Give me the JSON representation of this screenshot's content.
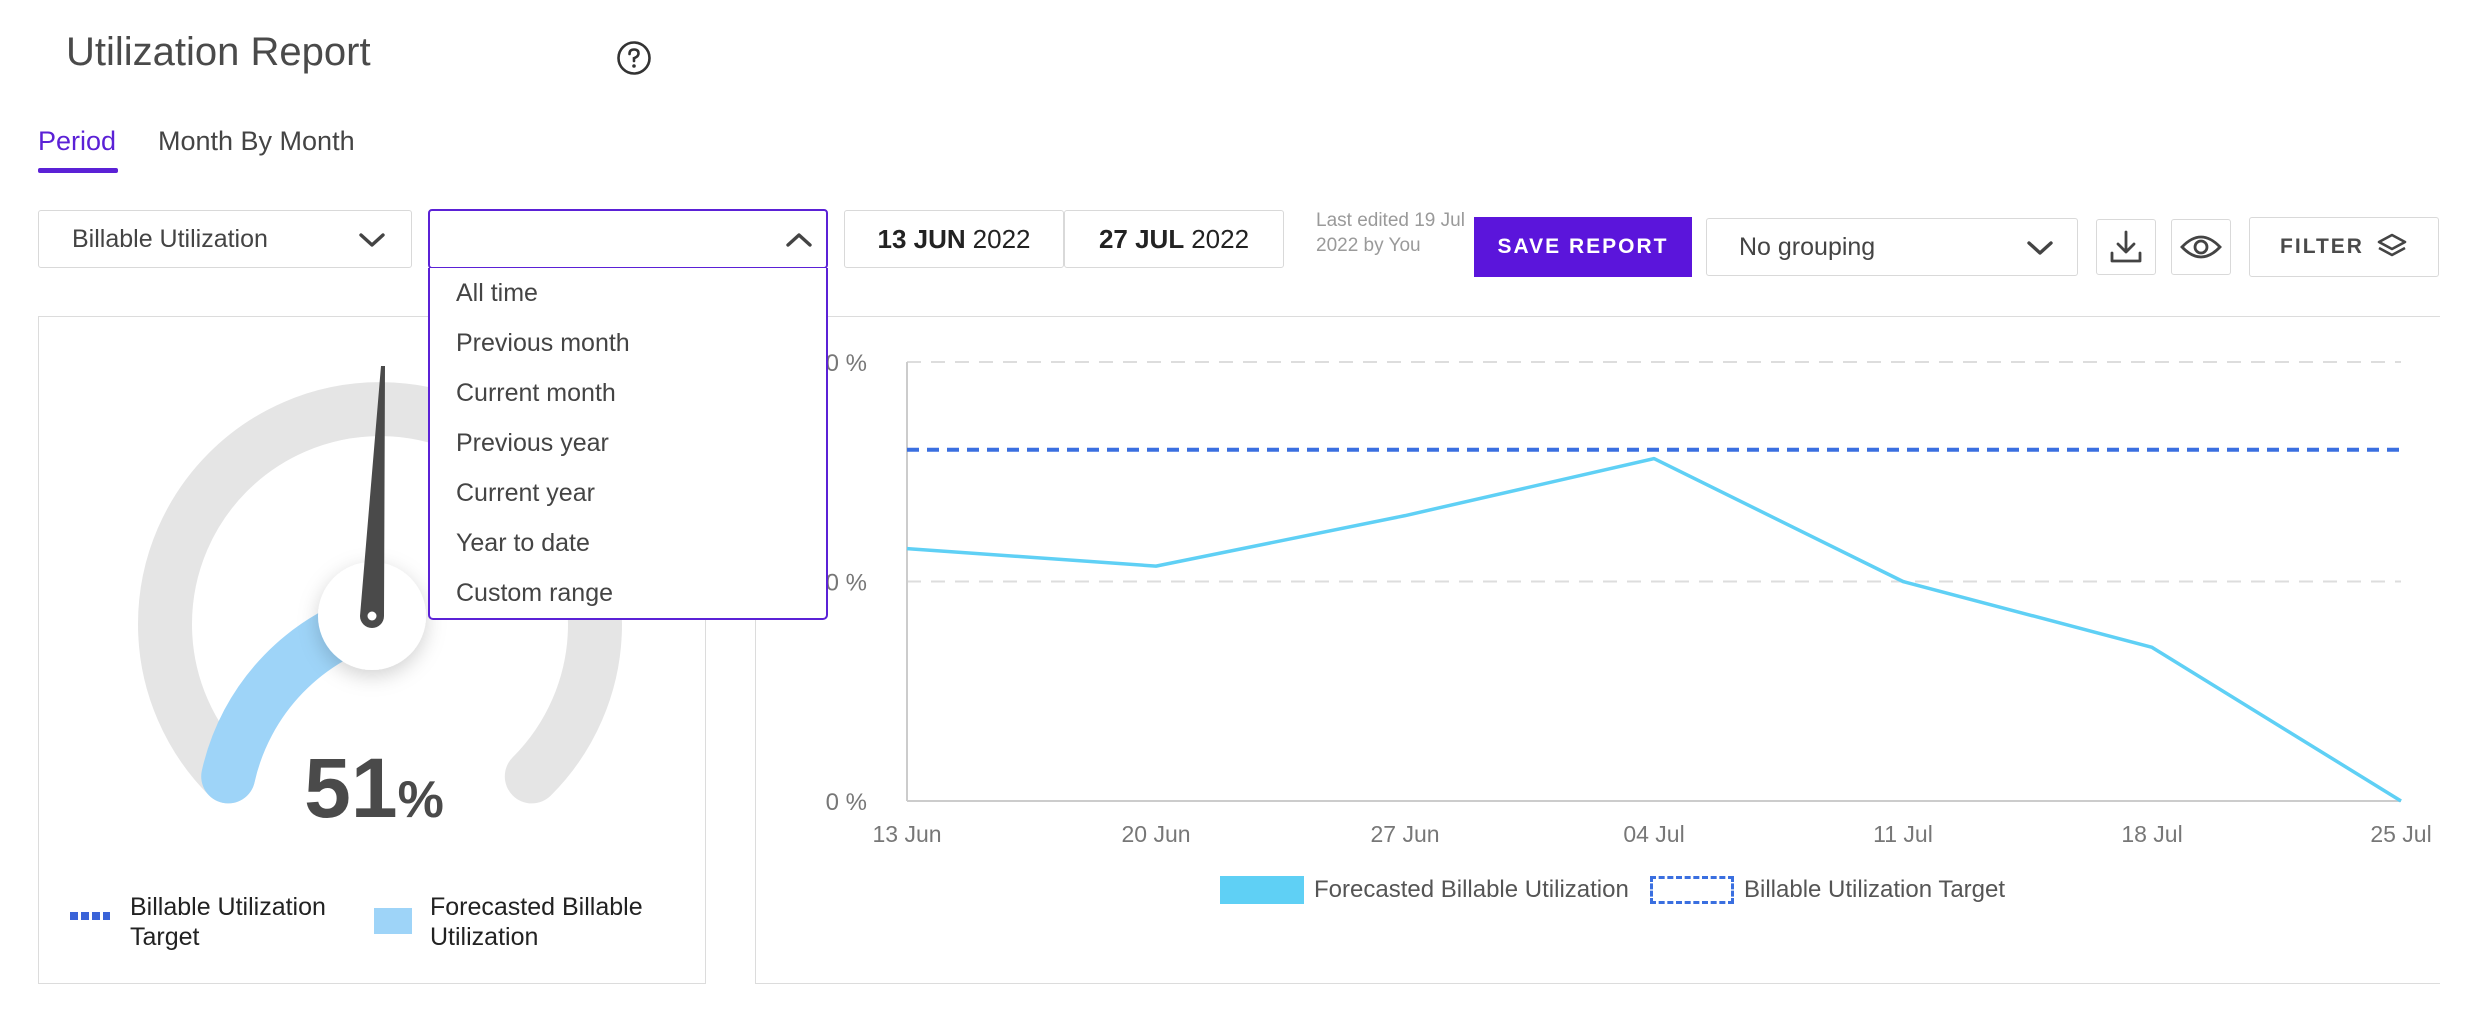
{
  "header": {
    "title": "Utilization Report"
  },
  "tabs": [
    {
      "label": "Period",
      "active": true
    },
    {
      "label": "Month By Month",
      "active": false
    }
  ],
  "toolbar": {
    "metric_select": "Billable Utilization",
    "period_select": "",
    "start_date": {
      "day": "13 JUN",
      "year": "2022"
    },
    "end_date": {
      "day": "27 JUL",
      "year": "2022"
    },
    "last_edited": "Last edited 19 Jul 2022 by You",
    "save_label": "SAVE REPORT",
    "grouping_select": "No grouping",
    "filter_label": "FILTER"
  },
  "period_options": [
    "All time",
    "Previous month",
    "Current month",
    "Previous year",
    "Current year",
    "Year to date",
    "Custom range"
  ],
  "gauge": {
    "value": "51",
    "unit": "%",
    "legend": [
      {
        "label": "Billable Utilization Target",
        "color": "#3a63d8"
      },
      {
        "label": "Forecasted Billable Utilization",
        "color": "#9ed4f8"
      }
    ]
  },
  "colors": {
    "accent": "#5b15db",
    "forecast_line": "#5fd0f5",
    "target_line": "#3a6fe0",
    "gauge_fill": "#9ed4f8",
    "gauge_track": "#e5e5e5"
  },
  "chart_data": {
    "type": "line",
    "x": [
      "13 Jun",
      "20 Jun",
      "27 Jun",
      "04 Jul",
      "11 Jul",
      "18 Jul",
      "25 Jul"
    ],
    "y_tick_labels": [
      "0 %",
      "0 %",
      "0 %"
    ],
    "series": [
      {
        "name": "Forecasted Billable Utilization",
        "values": [
          0.575,
          0.535,
          0.65,
          0.78,
          0.5,
          0.35,
          0.0
        ],
        "style": "solid"
      },
      {
        "name": "Billable Utilization Target",
        "values": [
          0.8,
          0.8,
          0.8,
          0.8,
          0.8,
          0.8,
          0.8
        ],
        "style": "dashed"
      }
    ],
    "ylim": [
      0,
      1
    ],
    "grid": true,
    "legend_position": "bottom"
  }
}
